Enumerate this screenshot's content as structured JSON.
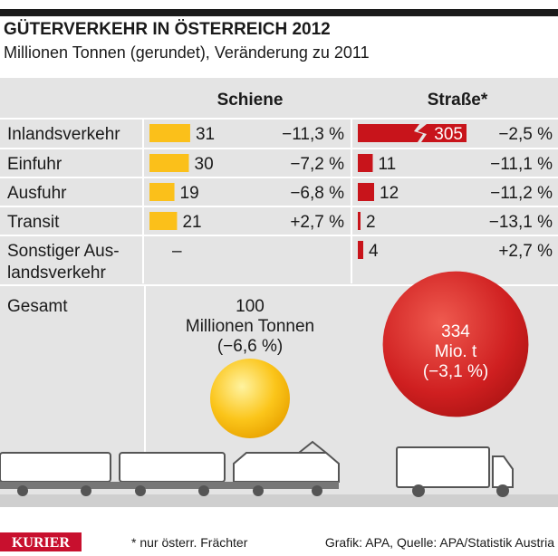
{
  "header": {
    "title": "GÜTERVERKEHR IN ÖSTERREICH 2012",
    "subtitle": "Millionen Tonnen (gerundet), Veränderung zu 2011"
  },
  "table": {
    "columns": [
      "Schiene",
      "Straße*"
    ],
    "rows": [
      {
        "label": "Inlandsverkehr",
        "rail": 31,
        "rail_change": "−11,3 %",
        "road": 305,
        "road_change": "−2,5 %"
      },
      {
        "label": "Einfuhr",
        "rail": 30,
        "rail_change": "−7,2 %",
        "road": 11,
        "road_change": "−11,1 %"
      },
      {
        "label": "Ausfuhr",
        "rail": 19,
        "rail_change": "−6,8 %",
        "road": 12,
        "road_change": "−11,2 %"
      },
      {
        "label": "Transit",
        "rail": 21,
        "rail_change": "+2,7 %",
        "road": 2,
        "road_change": "−13,1 %"
      },
      {
        "label": "Sonstiger Aus-\nlandsverkehr",
        "rail": null,
        "rail_text": "–",
        "road": 4,
        "road_change": "+2,7 %"
      }
    ]
  },
  "total": {
    "label": "Gesamt",
    "rail": {
      "value": 100,
      "unit": "Millionen Tonnen",
      "change": "(−6,6 %)"
    },
    "road": {
      "value": 334,
      "unit": "Mio. t",
      "change": "(−3,1 %)"
    }
  },
  "footer": {
    "logo": "KURIER",
    "note": "* nur österr. Frächter",
    "source": "Grafik: APA, Quelle: APA/Statistik Austria"
  }
}
